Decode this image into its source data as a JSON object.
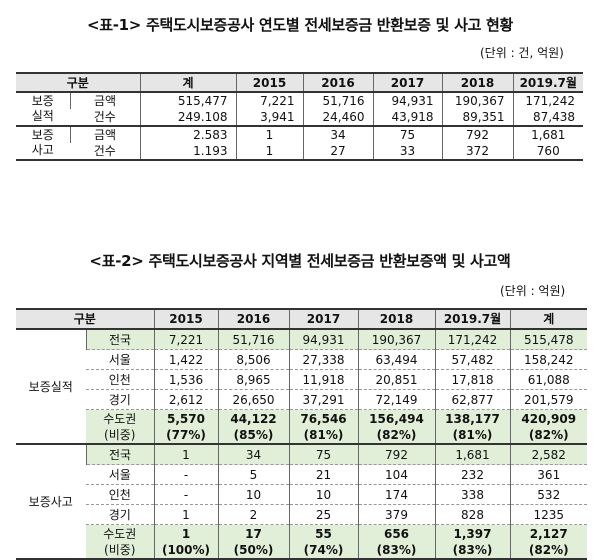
{
  "table1": {
    "title": "<표-1> 주택도시보증공사 연도별 전세보증금 반환보증 및 사고 현황",
    "unit": "(단위 : 건, 억원)",
    "header": [
      "구분",
      "계",
      "2015",
      "2016",
      "2017",
      "2018",
      "2019.7월"
    ],
    "groups": [
      {
        "label_line1": "보증",
        "label_line2": "실적",
        "rows": [
          {
            "label": "금액",
            "values": [
              "515,477",
              "7,221",
              "51,716",
              "94,931",
              "190,367",
              "171,242"
            ]
          },
          {
            "label": "건수",
            "values": [
              "249.108",
              "3,941",
              "24,460",
              "43,918",
              "89,351",
              "87,438"
            ]
          }
        ]
      },
      {
        "label_line1": "보증",
        "label_line2": "사고",
        "rows": [
          {
            "label": "금액",
            "values": [
              "2.583",
              "1",
              "34",
              "75",
              "792",
              "1,681"
            ]
          },
          {
            "label": "건수",
            "values": [
              "1.193",
              "1",
              "27",
              "33",
              "372",
              "760"
            ]
          }
        ]
      }
    ]
  },
  "table2": {
    "title": "<표-2> 주택도시보증공사 지역별 전세보증금 반환보증액 및 사고액",
    "unit": "(단위 : 억원)",
    "header": [
      "구분",
      "2015",
      "2016",
      "2017",
      "2018",
      "2019.7월",
      "계"
    ],
    "groups": [
      {
        "label": "보증실적",
        "rows": [
          {
            "label": "전국",
            "values": [
              "7,221",
              "51,716",
              "94,931",
              "190,367",
              "171,242",
              "515,478"
            ]
          },
          {
            "label": "서울",
            "values": [
              "1,422",
              "8,506",
              "27,338",
              "63,494",
              "57,482",
              "158,242"
            ]
          },
          {
            "label": "인천",
            "values": [
              "1,536",
              "8,965",
              "11,918",
              "20,851",
              "17,818",
              "61,088"
            ]
          },
          {
            "label": "경기",
            "values": [
              "2,612",
              "26,650",
              "37,291",
              "72,149",
              "62,877",
              "201,579"
            ]
          }
        ],
        "capital": {
          "label1": "수도권",
          "label2": "(비중)",
          "values": [
            "5,570",
            "44,122",
            "76,546",
            "156,494",
            "138,177",
            "420,909"
          ],
          "shares": [
            "(77%)",
            "(85%)",
            "(81%)",
            "(82%)",
            "(81%)",
            "(82%)"
          ]
        }
      },
      {
        "label": "보증사고",
        "rows": [
          {
            "label": "전국",
            "values": [
              "1",
              "34",
              "75",
              "792",
              "1,681",
              "2,582"
            ]
          },
          {
            "label": "서울",
            "values": [
              "-",
              "5",
              "21",
              "104",
              "232",
              "361"
            ]
          },
          {
            "label": "인천",
            "values": [
              "-",
              "10",
              "10",
              "174",
              "338",
              "532"
            ]
          },
          {
            "label": "경기",
            "values": [
              "1",
              "2",
              "25",
              "379",
              "828",
              "1235"
            ]
          }
        ],
        "capital": {
          "label1": "수도권",
          "label2": "(비중)",
          "values": [
            "1",
            "17",
            "55",
            "656",
            "1,397",
            "2,127"
          ],
          "shares": [
            "(100%)",
            "(50%)",
            "(74%)",
            "(83%)",
            "(83%)",
            "(82%)"
          ]
        }
      }
    ]
  }
}
